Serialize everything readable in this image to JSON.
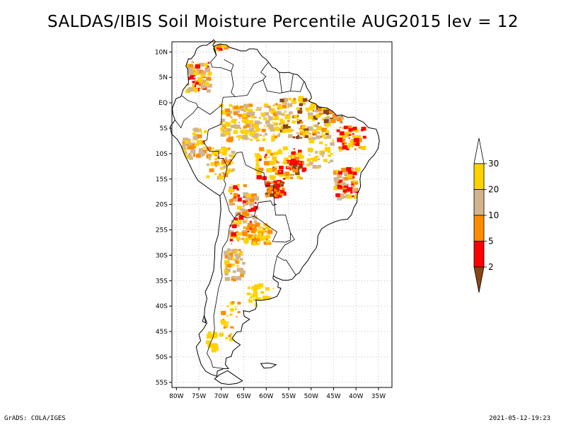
{
  "title": "SALDAS/IBIS Soil Moisture Percentile AUG2015 lev = 12",
  "footer": {
    "left": "GrADS: COLA/IGES",
    "right": "2021-05-12-19:23"
  },
  "map": {
    "lon_range": [
      -81,
      -32
    ],
    "lat_range": [
      -56,
      12
    ],
    "x_ticks": [
      {
        "label": "80W",
        "value": -80
      },
      {
        "label": "75W",
        "value": -75
      },
      {
        "label": "70W",
        "value": -70
      },
      {
        "label": "65W",
        "value": -65
      },
      {
        "label": "60W",
        "value": -60
      },
      {
        "label": "55W",
        "value": -55
      },
      {
        "label": "50W",
        "value": -50
      },
      {
        "label": "45W",
        "value": -45
      },
      {
        "label": "40W",
        "value": -40
      },
      {
        "label": "35W",
        "value": -35
      }
    ],
    "y_ticks": [
      {
        "label": "10N",
        "value": 10
      },
      {
        "label": "5N",
        "value": 5
      },
      {
        "label": "EQ",
        "value": 0
      },
      {
        "label": "5S",
        "value": -5
      },
      {
        "label": "10S",
        "value": -10
      },
      {
        "label": "15S",
        "value": -15
      },
      {
        "label": "20S",
        "value": -20
      },
      {
        "label": "25S",
        "value": -25
      },
      {
        "label": "30S",
        "value": -30
      },
      {
        "label": "35S",
        "value": -35
      },
      {
        "label": "40S",
        "value": -40
      },
      {
        "label": "45S",
        "value": -45
      },
      {
        "label": "50S",
        "value": -50
      },
      {
        "label": "55S",
        "value": -55
      }
    ]
  },
  "legend": {
    "levels": [
      {
        "label": "30",
        "color": "#ffffff"
      },
      {
        "label": "20",
        "color": "#ffd200"
      },
      {
        "label": "10",
        "color": "#d2b48c"
      },
      {
        "label": "5",
        "color": "#ff8c00"
      },
      {
        "label": "2",
        "color": "#ff0000"
      },
      {
        "label": "",
        "color": "#8b4513"
      }
    ]
  },
  "colors": {
    "yellow": "#ffd200",
    "tan": "#d2b48c",
    "orange": "#ff8c00",
    "red": "#ff0000",
    "brown": "#8b4513"
  }
}
